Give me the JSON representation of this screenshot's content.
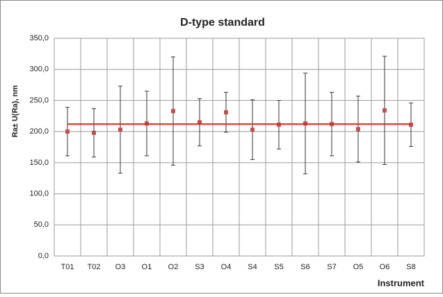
{
  "chart_data": {
    "type": "errorbar",
    "title": "D-type standard",
    "x_label": "Instrument",
    "y_label": "Ra± U(Ra), nm",
    "categories": [
      "T01",
      "T02",
      "O3",
      "O1",
      "O2",
      "S3",
      "O4",
      "S4",
      "S5",
      "S6",
      "S7",
      "O5",
      "O6",
      "S8"
    ],
    "values": [
      200,
      198,
      203,
      213,
      233,
      215,
      231,
      203,
      211,
      213,
      212,
      204,
      234,
      211
    ],
    "errors": [
      39,
      39,
      70,
      52,
      87,
      38,
      32,
      48,
      39,
      81,
      51,
      53,
      87,
      35
    ],
    "color": "#c0504d",
    "reference_line": 212,
    "reference_color": "#e0201c",
    "ylim": [
      0,
      350
    ],
    "yticks": [
      {
        "value": 0,
        "label": "0,0"
      },
      {
        "value": 50,
        "label": "50,0"
      },
      {
        "value": 100,
        "label": "100,0"
      },
      {
        "value": 150,
        "label": "150,0"
      },
      {
        "value": 200,
        "label": "200,0"
      },
      {
        "value": 250,
        "label": "250,0"
      },
      {
        "value": 300,
        "label": "300,0"
      },
      {
        "value": 350,
        "label": "350,0"
      }
    ],
    "grid": true
  }
}
